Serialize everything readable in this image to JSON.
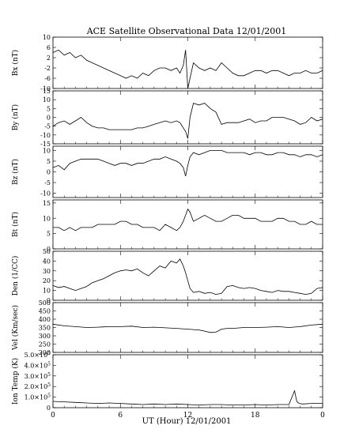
{
  "title": "ACE Satellite Observational Data   12/01/2001",
  "xlabel": "UT (Hour)   12/01/2001",
  "x_ticks": [
    "0",
    "6",
    "12",
    "18",
    "0"
  ],
  "chart_data": [
    {
      "type": "line",
      "ylabel": "Bx (nT)",
      "xlim": [
        0,
        24
      ],
      "ylim": [
        -10,
        10
      ],
      "y_ticks": [
        "10",
        "6",
        "2",
        "-2",
        "-6",
        "-10"
      ],
      "y_tick_values": [
        10,
        6,
        2,
        -2,
        -6,
        -10
      ],
      "series": [
        {
          "x": [
            0,
            0.5,
            1,
            1.5,
            2,
            2.5,
            3,
            3.5,
            4,
            4.5,
            5,
            5.5,
            6,
            6.5,
            7,
            7.5,
            8,
            8.5,
            9,
            9.5,
            10,
            10.5,
            11,
            11.3,
            11.6,
            11.8,
            12,
            12.2,
            12.5,
            13,
            13.5,
            14,
            14.5,
            15,
            15.5,
            16,
            16.5,
            17,
            17.5,
            18,
            18.5,
            19,
            19.5,
            20,
            20.5,
            21,
            21.5,
            22,
            22.5,
            23,
            23.5,
            24
          ],
          "y": [
            4,
            5,
            3,
            4,
            2,
            3,
            1,
            0,
            -1,
            -2,
            -3,
            -4,
            -5,
            -6,
            -5,
            -6,
            -4,
            -5,
            -3,
            -2,
            -2,
            -3,
            -2,
            -4,
            -1,
            5,
            -10,
            -6,
            0,
            -2,
            -3,
            -2,
            -3,
            0,
            -2,
            -4,
            -5,
            -5,
            -4,
            -3,
            -3,
            -4,
            -3,
            -3,
            -4,
            -5,
            -4,
            -4,
            -3,
            -4,
            -4,
            -3
          ]
        }
      ]
    },
    {
      "type": "line",
      "ylabel": "By (nT)",
      "xlim": [
        0,
        24
      ],
      "ylim": [
        -15,
        15
      ],
      "y_ticks": [
        "15",
        "10",
        "5",
        "0",
        "-5",
        "-10",
        "-15"
      ],
      "y_tick_values": [
        15,
        10,
        5,
        0,
        -5,
        -10,
        -15
      ],
      "series": [
        {
          "x": [
            0,
            0.5,
            1,
            1.5,
            2,
            2.5,
            3,
            3.5,
            4,
            4.5,
            5,
            5.5,
            6,
            6.5,
            7,
            7.5,
            8,
            8.5,
            9,
            9.5,
            10,
            10.5,
            11,
            11.3,
            11.6,
            11.8,
            12,
            12.2,
            12.5,
            13,
            13.5,
            14,
            14.5,
            15,
            15.5,
            16,
            16.5,
            17,
            17.5,
            18,
            18.5,
            19,
            19.5,
            20,
            20.5,
            21,
            21.5,
            22,
            22.5,
            23,
            23.5,
            24
          ],
          "y": [
            -5,
            -3,
            -2,
            -4,
            -2,
            0,
            -3,
            -5,
            -6,
            -6,
            -7,
            -7,
            -7,
            -7,
            -7,
            -6,
            -6,
            -5,
            -4,
            -3,
            -2,
            -3,
            -2,
            -3,
            -6,
            -8,
            -12,
            0,
            8,
            7,
            8,
            5,
            3,
            -4,
            -3,
            -3,
            -3,
            -2,
            -1,
            -3,
            -2,
            -2,
            0,
            0,
            0,
            -1,
            -2,
            -4,
            -3,
            0,
            -2,
            -1
          ]
        }
      ]
    },
    {
      "type": "line",
      "ylabel": "Bz (nT)",
      "xlim": [
        0,
        24
      ],
      "ylim": [
        -12,
        12
      ],
      "y_ticks": [
        "10",
        "5",
        "0",
        "-5",
        "-10"
      ],
      "y_tick_values": [
        10,
        5,
        0,
        -5,
        -10
      ],
      "series": [
        {
          "x": [
            0,
            0.5,
            1,
            1.5,
            2,
            2.5,
            3,
            3.5,
            4,
            4.5,
            5,
            5.5,
            6,
            6.5,
            7,
            7.5,
            8,
            8.5,
            9,
            9.5,
            10,
            10.5,
            11,
            11.3,
            11.6,
            11.8,
            12,
            12.2,
            12.5,
            13,
            13.5,
            14,
            14.5,
            15,
            15.5,
            16,
            16.5,
            17,
            17.5,
            18,
            18.5,
            19,
            19.5,
            20,
            20.5,
            21,
            21.5,
            22,
            22.5,
            23,
            23.5,
            24
          ],
          "y": [
            2,
            3,
            1,
            4,
            5,
            6,
            6,
            6,
            6,
            5,
            4,
            3,
            4,
            4,
            3,
            4,
            4,
            5,
            6,
            6,
            7,
            6,
            5,
            4,
            2,
            -2,
            3,
            7,
            9,
            8,
            9,
            10,
            10,
            10,
            9,
            9,
            9,
            9,
            8,
            9,
            9,
            8,
            8,
            9,
            9,
            8,
            8,
            7,
            8,
            8,
            7,
            8
          ]
        }
      ]
    },
    {
      "type": "line",
      "ylabel": "Bt (nT)",
      "xlim": [
        0,
        24
      ],
      "ylim": [
        0,
        16
      ],
      "y_ticks": [
        "15",
        "10",
        "5",
        "0"
      ],
      "y_tick_values": [
        15,
        10,
        5,
        0
      ],
      "series": [
        {
          "x": [
            0,
            0.5,
            1,
            1.5,
            2,
            2.5,
            3,
            3.5,
            4,
            4.5,
            5,
            5.5,
            6,
            6.5,
            7,
            7.5,
            8,
            8.5,
            9,
            9.5,
            10,
            10.5,
            11,
            11.3,
            11.6,
            11.8,
            12,
            12.2,
            12.5,
            13,
            13.5,
            14,
            14.5,
            15,
            15.5,
            16,
            16.5,
            17,
            17.5,
            18,
            18.5,
            19,
            19.5,
            20,
            20.5,
            21,
            21.5,
            22,
            22.5,
            23,
            23.5,
            24
          ],
          "y": [
            7,
            7,
            6,
            7,
            6,
            7,
            7,
            7,
            8,
            8,
            8,
            8,
            9,
            9,
            8,
            8,
            7,
            7,
            7,
            6,
            8,
            7,
            6,
            7,
            9,
            11,
            13,
            12,
            9,
            10,
            11,
            10,
            9,
            9,
            10,
            11,
            11,
            10,
            10,
            10,
            9,
            9,
            9,
            10,
            10,
            9,
            9,
            8,
            8,
            9,
            8,
            8
          ]
        }
      ]
    },
    {
      "type": "line",
      "ylabel": "Den (1/CC)",
      "xlim": [
        0,
        24
      ],
      "ylim": [
        0,
        50
      ],
      "y_ticks": [
        "50",
        "40",
        "30",
        "20",
        "10",
        "0"
      ],
      "y_tick_values": [
        50,
        40,
        30,
        20,
        10,
        0
      ],
      "series": [
        {
          "x": [
            0,
            0.5,
            1,
            1.5,
            2,
            2.5,
            3,
            3.5,
            4,
            4.5,
            5,
            5.5,
            6,
            6.5,
            7,
            7.5,
            8,
            8.5,
            9,
            9.5,
            10,
            10.5,
            11,
            11.3,
            11.6,
            11.8,
            12,
            12.2,
            12.5,
            13,
            13.5,
            14,
            14.5,
            15,
            15.5,
            16,
            16.5,
            17,
            17.5,
            18,
            18.5,
            19,
            19.5,
            20,
            20.5,
            21,
            21.5,
            22,
            22.5,
            23,
            23.5,
            24
          ],
          "y": [
            15,
            13,
            14,
            12,
            10,
            12,
            14,
            18,
            20,
            22,
            25,
            28,
            30,
            31,
            30,
            32,
            28,
            25,
            30,
            35,
            33,
            40,
            38,
            42,
            35,
            28,
            20,
            12,
            8,
            9,
            7,
            8,
            6,
            7,
            14,
            15,
            13,
            12,
            13,
            12,
            10,
            9,
            8,
            10,
            9,
            9,
            8,
            7,
            6,
            7,
            12,
            13
          ]
        }
      ]
    },
    {
      "type": "line",
      "ylabel": "Vel (Km/sec)",
      "xlim": [
        0,
        24
      ],
      "ylim": [
        200,
        500
      ],
      "y_ticks": [
        "500",
        "450",
        "400",
        "350",
        "300",
        "250",
        "200"
      ],
      "y_tick_values": [
        500,
        450,
        400,
        350,
        300,
        250,
        200
      ],
      "series": [
        {
          "x": [
            0,
            1,
            2,
            3,
            4,
            5,
            6,
            7,
            8,
            9,
            10,
            11,
            12,
            13,
            13.5,
            14,
            14.5,
            15,
            15.5,
            16,
            17,
            18,
            19,
            20,
            21,
            22,
            23,
            24
          ],
          "y": [
            370,
            360,
            355,
            350,
            352,
            355,
            355,
            358,
            350,
            352,
            348,
            345,
            340,
            335,
            328,
            320,
            322,
            340,
            345,
            345,
            350,
            350,
            352,
            355,
            350,
            355,
            365,
            370
          ]
        }
      ]
    },
    {
      "type": "line",
      "ylabel": "Ion Temp (K)",
      "xlim": [
        0,
        24
      ],
      "ylim": [
        0,
        500000
      ],
      "y_ticks": [
        "5.0×10",
        "4.0×10",
        "3.0×10",
        "2.0×10",
        "1.0×10",
        "0"
      ],
      "y_tick_exponent": "5",
      "y_tick_values": [
        500000,
        400000,
        300000,
        200000,
        100000,
        0
      ],
      "series": [
        {
          "x": [
            0,
            1,
            2,
            3,
            4,
            5,
            6,
            7,
            8,
            9,
            10,
            11,
            12,
            13,
            14,
            15,
            16,
            17,
            18,
            19,
            20,
            21,
            21.5,
            21.7,
            21.9,
            22.2,
            23,
            24
          ],
          "y": [
            60000,
            55000,
            50000,
            45000,
            40000,
            45000,
            40000,
            35000,
            30000,
            35000,
            30000,
            35000,
            30000,
            25000,
            30000,
            30000,
            25000,
            25000,
            30000,
            25000,
            30000,
            30000,
            160000,
            60000,
            40000,
            35000,
            40000,
            40000
          ]
        }
      ]
    }
  ]
}
